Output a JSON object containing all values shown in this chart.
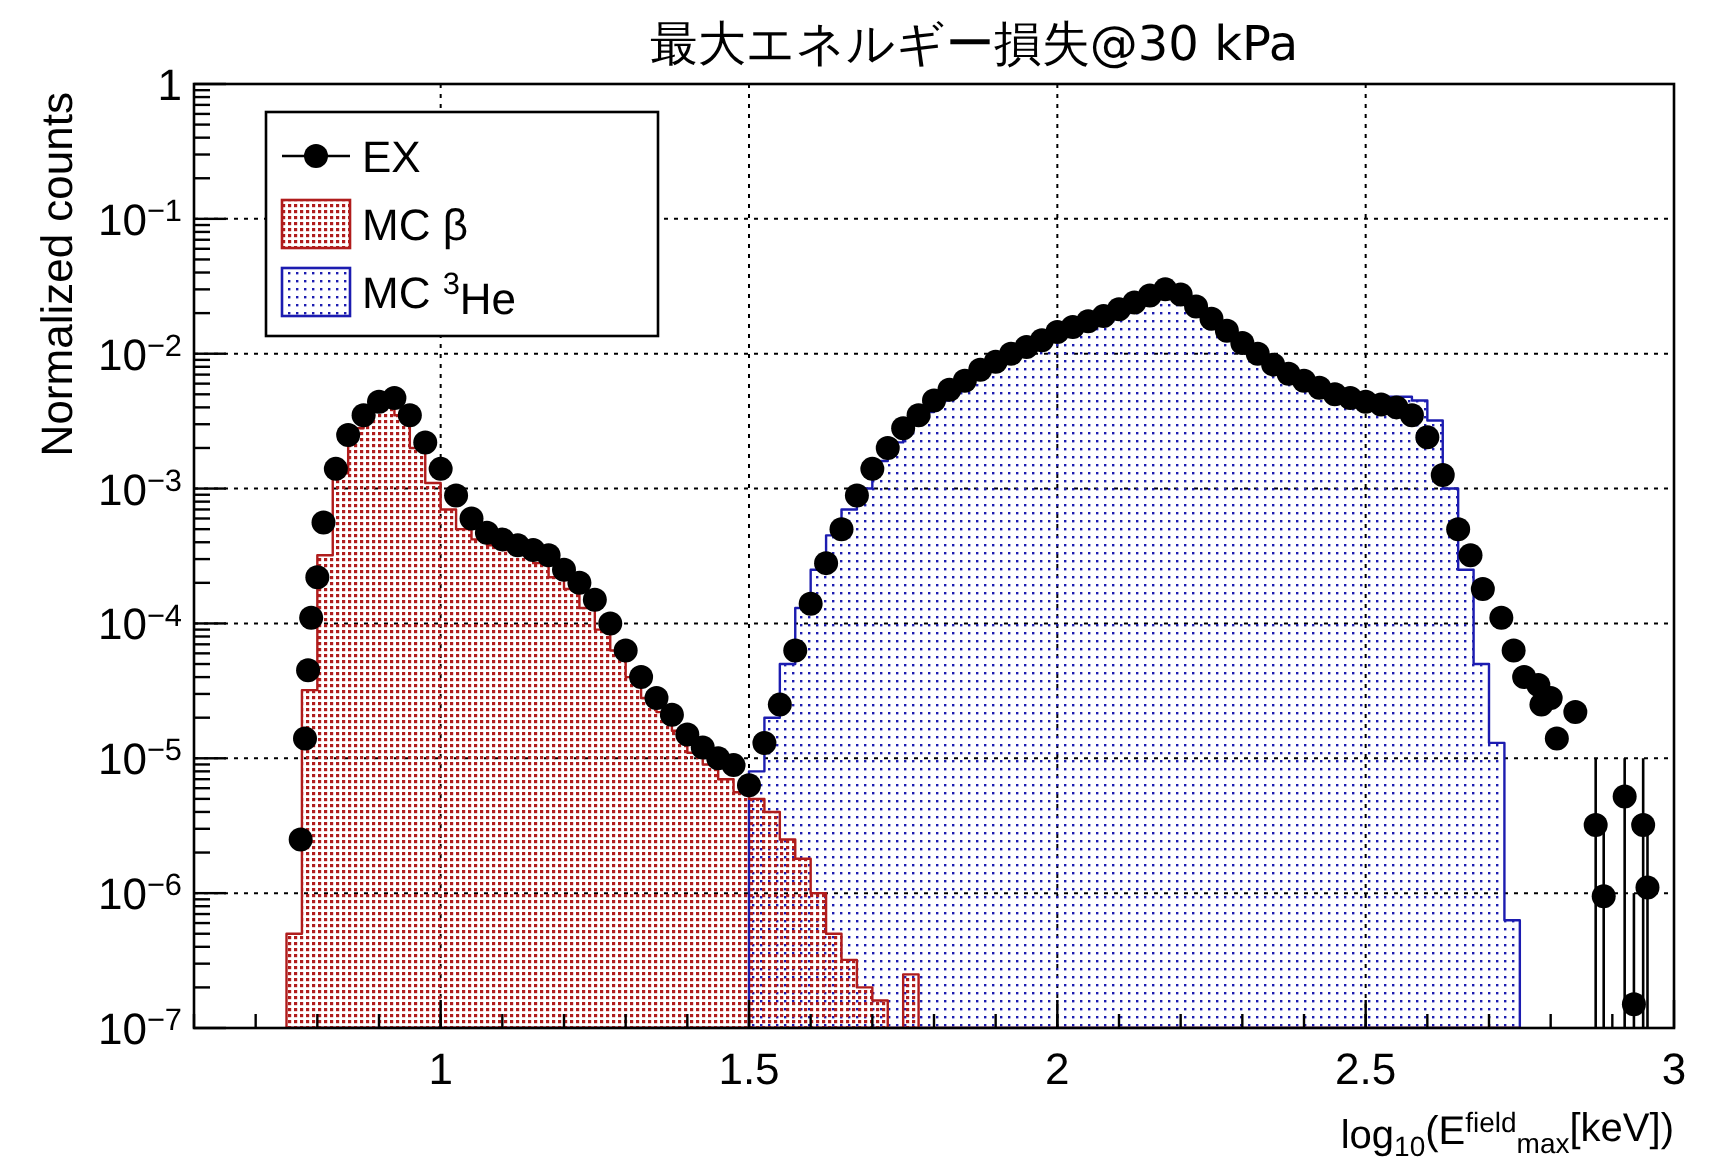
{
  "chart_data": {
    "type": "histogram",
    "title": "最大エネルギー損失@30 kPa",
    "xlabel": "log$_{10}$(E$^{field}$$_{max}$[keV])",
    "ylabel": "Normalized counts",
    "log": "y",
    "grid": true,
    "legend": "top left",
    "marker": "circle",
    "xlim": [
      0.6,
      3
    ],
    "ylim": [
      1e-07,
      1
    ],
    "xticks": [
      1,
      1.5,
      2,
      2.5,
      3
    ],
    "yticks": [
      {
        "value": 1e-07,
        "label": "10$^{−7}$"
      },
      {
        "value": 1e-06,
        "label": "10$^{−6}$"
      },
      {
        "value": 1e-05,
        "label": "10$^{−5}$"
      },
      {
        "value": 0.0001,
        "label": "10$^{−4}$"
      },
      {
        "value": 0.001,
        "label": "10$^{−3}$"
      },
      {
        "value": 0.01,
        "label": "10$^{−2}$"
      },
      {
        "value": 0.1,
        "label": "10$^{−1}$"
      },
      1
    ],
    "bins": [
      0.75,
      0.775,
      0.8,
      0.825,
      0.85,
      0.875,
      0.9,
      0.925,
      0.95,
      0.975,
      1.0,
      1.025,
      1.05,
      1.075,
      1.1,
      1.125,
      1.15,
      1.175,
      1.2,
      1.225,
      1.25,
      1.275,
      1.3,
      1.325,
      1.35,
      1.375,
      1.4,
      1.425,
      1.45,
      1.475,
      1.5,
      1.525,
      1.55,
      1.575,
      1.6,
      1.625,
      1.65,
      1.675,
      1.7,
      1.725,
      1.75,
      1.775,
      1.8,
      1.825,
      1.85,
      1.875,
      1.9,
      1.925,
      1.95,
      1.975,
      2.0,
      2.025,
      2.05,
      2.075,
      2.1,
      2.125,
      2.15,
      2.175,
      2.2,
      2.225,
      2.25,
      2.275,
      2.3,
      2.325,
      2.35,
      2.375,
      2.4,
      2.425,
      2.45,
      2.475,
      2.5,
      2.525,
      2.55,
      2.575,
      2.6,
      2.625,
      2.65,
      2.675,
      2.7,
      2.725,
      2.75
    ],
    "series": [
      {
        "name": "MC $^{3}$He",
        "color": "#1c1cb0",
        "values": [
          null,
          null,
          null,
          null,
          null,
          null,
          null,
          null,
          null,
          null,
          null,
          null,
          null,
          null,
          null,
          null,
          null,
          null,
          null,
          null,
          null,
          null,
          null,
          null,
          null,
          null,
          null,
          null,
          null,
          null,
          8e-06,
          2e-05,
          5e-05,
          0.00013,
          0.00025,
          0.00045,
          0.0007,
          0.001,
          0.0016,
          0.0022,
          0.003,
          0.0037,
          0.0045,
          0.0056,
          0.0068,
          0.0079,
          0.0091,
          0.0105,
          0.0117,
          0.0129,
          0.0141,
          0.0158,
          0.0178,
          0.02,
          0.0224,
          0.025,
          0.028,
          0.03,
          0.026,
          0.021,
          0.0166,
          0.0135,
          0.011,
          0.0091,
          0.0076,
          0.0066,
          0.006,
          0.0055,
          0.0052,
          0.005,
          0.0048,
          0.0048,
          0.0048,
          0.0045,
          0.0032,
          0.001,
          0.00025,
          5e-05,
          1.3e-05,
          6.3e-07
        ]
      },
      {
        "name": "MC β",
        "color": "#b01c1c",
        "values": [
          5e-07,
          3.2e-05,
          0.00032,
          0.0013,
          0.0028,
          0.004,
          0.0045,
          0.0035,
          0.002,
          0.0011,
          0.0007,
          0.0005,
          0.00042,
          0.00038,
          0.00035,
          0.00033,
          0.00028,
          0.00022,
          0.00018,
          0.00013,
          9e-05,
          6.3e-05,
          4e-05,
          2.8e-05,
          2.2e-05,
          1.6e-05,
          1.1e-05,
          9e-06,
          7e-06,
          5.6e-06,
          5e-06,
          4e-06,
          2.5e-06,
          1.8e-06,
          1e-06,
          5e-07,
          3.2e-07,
          2e-07,
          1.6e-07,
          null,
          2.5e-07,
          null,
          null,
          null,
          null,
          null,
          null,
          null,
          null,
          null,
          null,
          null,
          null,
          null,
          null,
          null,
          null,
          null,
          null,
          null,
          null,
          null,
          null,
          null,
          null,
          null,
          null,
          null,
          null,
          null,
          null,
          null,
          null,
          null,
          null,
          null,
          null,
          null,
          null,
          null
        ]
      },
      {
        "name": "EX",
        "type": "scatter",
        "color": "#000000",
        "x": [
          0.773,
          0.78,
          0.785,
          0.79,
          0.8,
          0.81,
          0.83,
          0.85,
          0.875,
          0.9,
          0.925,
          0.95,
          0.975,
          1.0,
          1.025,
          1.05,
          1.075,
          1.1,
          1.125,
          1.15,
          1.175,
          1.2,
          1.225,
          1.25,
          1.275,
          1.3,
          1.325,
          1.35,
          1.375,
          1.4,
          1.425,
          1.45,
          1.475,
          1.5,
          1.525,
          1.55,
          1.575,
          1.6,
          1.625,
          1.65,
          1.675,
          1.7,
          1.725,
          1.75,
          1.775,
          1.8,
          1.825,
          1.85,
          1.875,
          1.9,
          1.925,
          1.95,
          1.975,
          2.0,
          2.025,
          2.05,
          2.075,
          2.1,
          2.125,
          2.15,
          2.175,
          2.2,
          2.225,
          2.25,
          2.275,
          2.3,
          2.325,
          2.35,
          2.375,
          2.4,
          2.425,
          2.45,
          2.475,
          2.5,
          2.525,
          2.55,
          2.575,
          2.6,
          2.625,
          2.65,
          2.67,
          2.69,
          2.72,
          2.74,
          2.757,
          2.78,
          2.785,
          2.8,
          2.81,
          2.84,
          2.873,
          2.886,
          2.92,
          2.935,
          2.95,
          2.957
        ],
        "values": [
          2.5e-06,
          1.4e-05,
          4.5e-05,
          0.00011,
          0.00022,
          0.00056,
          0.0014,
          0.0025,
          0.0035,
          0.0044,
          0.0047,
          0.0035,
          0.0022,
          0.0014,
          0.00089,
          0.0006,
          0.00047,
          0.00042,
          0.00038,
          0.00035,
          0.00032,
          0.00025,
          0.0002,
          0.00015,
          0.0001,
          6.3e-05,
          4e-05,
          2.8e-05,
          2.1e-05,
          1.5e-05,
          1.2e-05,
          1e-05,
          8.9e-06,
          6.3e-06,
          1.3e-05,
          2.5e-05,
          6.3e-05,
          0.00014,
          0.00028,
          0.0005,
          0.00089,
          0.0014,
          0.002,
          0.0028,
          0.0035,
          0.0045,
          0.0054,
          0.0063,
          0.0076,
          0.0087,
          0.01,
          0.0112,
          0.0126,
          0.0145,
          0.0158,
          0.0174,
          0.019,
          0.0214,
          0.024,
          0.027,
          0.03,
          0.0275,
          0.0224,
          0.0182,
          0.0148,
          0.012,
          0.01,
          0.0083,
          0.0071,
          0.0063,
          0.0056,
          0.005,
          0.0047,
          0.0044,
          0.0042,
          0.004,
          0.0035,
          0.0024,
          0.00126,
          0.0005,
          0.00032,
          0.00018,
          0.00011,
          6.3e-05,
          4e-05,
          3.5e-05,
          2.5e-05,
          2.8e-05,
          1.4e-05,
          2.2e-05,
          3.2e-06,
          9.5e-07,
          5.2e-06,
          1.5e-07,
          3.2e-06,
          1.1e-06
        ],
        "errors": [
          null,
          null,
          null,
          null,
          null,
          null,
          null,
          null,
          null,
          null,
          null,
          null,
          null,
          null,
          null,
          null,
          null,
          null,
          null,
          null,
          null,
          null,
          null,
          null,
          null,
          null,
          null,
          null,
          null,
          null,
          null,
          null,
          null,
          null,
          null,
          null,
          null,
          null,
          null,
          null,
          null,
          null,
          null,
          null,
          null,
          null,
          null,
          null,
          null,
          null,
          null,
          null,
          null,
          null,
          null,
          null,
          null,
          null,
          null,
          null,
          null,
          null,
          null,
          null,
          null,
          null,
          null,
          null,
          null,
          null,
          null,
          null,
          null,
          null,
          null,
          null,
          null,
          null,
          null,
          null,
          null,
          null,
          null,
          null,
          null,
          null,
          null,
          null,
          null,
          null,
          [
            1e-07,
            1e-05
          ],
          [
            1e-07,
            3e-06
          ],
          [
            1e-07,
            1e-05
          ],
          [
            1e-07,
            1e-06
          ],
          [
            1e-07,
            1e-05
          ],
          [
            1e-07,
            3e-06
          ]
        ]
      }
    ]
  }
}
